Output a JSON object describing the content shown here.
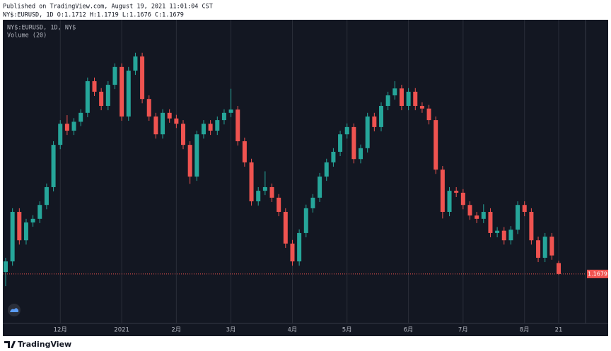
{
  "chart_data": {
    "type": "candlestick",
    "title": "Published on TradingView.com, August 19, 2021 11:01:04 CST",
    "subtitle": "NY$:EURUSD, 1D O:1.1712 H:1.1719 L:1.1676 C:1.1679",
    "annotations": [
      "NY$:EURUSD, 1D, NY$",
      "Volume (20)"
    ],
    "categories": [
      null,
      null,
      null,
      null,
      null,
      null,
      null,
      null,
      "12月",
      null,
      null,
      null,
      null,
      null,
      null,
      null,
      null,
      "2021",
      null,
      null,
      null,
      null,
      null,
      null,
      null,
      "2月",
      null,
      null,
      null,
      null,
      null,
      null,
      null,
      "3月",
      null,
      null,
      null,
      null,
      null,
      null,
      null,
      null,
      "4月",
      null,
      null,
      null,
      null,
      null,
      null,
      null,
      "5月",
      null,
      null,
      null,
      null,
      null,
      null,
      null,
      null,
      "6月",
      null,
      null,
      null,
      null,
      null,
      null,
      null,
      "7月",
      null,
      null,
      null,
      null,
      null,
      null,
      null,
      null,
      "8月",
      null,
      null,
      null,
      null,
      "21"
    ],
    "open": [
      1.1685,
      1.1717,
      1.1867,
      1.1781,
      1.1835,
      1.1846,
      1.1888,
      1.1942,
      1.207,
      1.2134,
      1.2113,
      1.214,
      1.2167,
      1.2263,
      1.2231,
      1.2188,
      1.2252,
      1.2306,
      1.2156,
      1.2295,
      1.2338,
      1.2209,
      1.2156,
      1.2102,
      1.2167,
      1.215,
      1.2134,
      1.207,
      1.1974,
      1.2102,
      1.2134,
      1.2113,
      1.2145,
      1.2167,
      1.2177,
      1.2081,
      1.2017,
      1.1899,
      1.1931,
      1.1942,
      1.191,
      1.1867,
      1.1771,
      1.1717,
      1.1803,
      1.1878,
      1.191,
      1.1974,
      1.2017,
      1.2049,
      1.2102,
      1.2124,
      1.2027,
      1.206,
      1.2156,
      1.2124,
      1.2188,
      1.222,
      1.2241,
      1.2188,
      1.2231,
      1.2188,
      1.218,
      1.2145,
      1.1995,
      1.1867,
      1.1931,
      1.1925,
      1.1888,
      1.1856,
      1.1846,
      1.1867,
      1.1803,
      1.181,
      1.1781,
      1.1813,
      1.1888,
      1.1867,
      1.1781,
      1.1728,
      1.1792,
      1.1712
    ],
    "high": [
      1.1728,
      1.1878,
      1.1878,
      1.1846,
      1.1857,
      1.1899,
      1.1953,
      1.2081,
      1.2145,
      1.216,
      1.2151,
      1.2178,
      1.2274,
      1.2274,
      1.2242,
      1.2263,
      1.2317,
      1.2317,
      1.2306,
      1.2349,
      1.2349,
      1.222,
      1.2167,
      1.2178,
      1.2178,
      1.2161,
      1.2145,
      1.2081,
      1.2113,
      1.2145,
      1.2145,
      1.2156,
      1.2178,
      1.224,
      1.2188,
      1.2092,
      1.2028,
      1.1942,
      1.199,
      1.1953,
      1.1921,
      1.1878,
      1.1782,
      1.1814,
      1.1889,
      1.1921,
      1.1985,
      1.2028,
      1.206,
      1.2113,
      1.2135,
      1.2135,
      1.2071,
      1.2167,
      1.2167,
      1.2199,
      1.2231,
      1.2263,
      1.2252,
      1.2242,
      1.2242,
      1.2199,
      1.2191,
      1.2156,
      1.2006,
      1.1942,
      1.1942,
      1.1936,
      1.1899,
      1.1867,
      1.189,
      1.1878,
      1.1821,
      1.1821,
      1.1824,
      1.1899,
      1.1899,
      1.1878,
      1.1792,
      1.1803,
      1.1803,
      1.1719
    ],
    "low": [
      1.1642,
      1.1704,
      1.1768,
      1.1768,
      1.1822,
      1.1833,
      1.1875,
      1.1929,
      1.2057,
      1.21,
      1.21,
      1.2127,
      1.2154,
      1.2218,
      1.2175,
      1.2175,
      1.2239,
      1.2143,
      1.2143,
      1.2282,
      1.2196,
      1.2143,
      1.2089,
      1.2089,
      1.2137,
      1.2121,
      1.2057,
      1.1952,
      1.1961,
      1.2089,
      1.21,
      1.21,
      1.2132,
      1.2154,
      1.2068,
      1.2004,
      1.1886,
      1.1886,
      1.1918,
      1.1897,
      1.1854,
      1.1758,
      1.1704,
      1.1704,
      1.179,
      1.1865,
      1.1897,
      1.1961,
      1.2004,
      1.2036,
      1.2089,
      1.2014,
      1.2014,
      1.2047,
      1.2111,
      1.2111,
      1.2175,
      1.2207,
      1.2175,
      1.2175,
      1.2175,
      1.2167,
      1.2132,
      1.1982,
      1.1847,
      1.1854,
      1.1912,
      1.1875,
      1.1843,
      1.1833,
      1.1833,
      1.179,
      1.179,
      1.1768,
      1.1768,
      1.18,
      1.1854,
      1.1768,
      1.1715,
      1.1715,
      1.1722,
      1.1676
    ],
    "close": [
      1.1717,
      1.1867,
      1.1781,
      1.1835,
      1.1846,
      1.1888,
      1.1942,
      1.207,
      1.2134,
      1.2113,
      1.214,
      1.2167,
      1.2263,
      1.2231,
      1.2188,
      1.2252,
      1.2306,
      1.2156,
      1.2295,
      1.2338,
      1.2209,
      1.2156,
      1.2102,
      1.2167,
      1.215,
      1.2134,
      1.207,
      1.1974,
      1.2102,
      1.2134,
      1.2113,
      1.2145,
      1.2167,
      1.2177,
      1.2081,
      1.2017,
      1.1899,
      1.1931,
      1.1942,
      1.191,
      1.1867,
      1.1771,
      1.1717,
      1.1803,
      1.1878,
      1.191,
      1.1974,
      1.2017,
      1.2049,
      1.2102,
      1.2124,
      1.2027,
      1.206,
      1.2156,
      1.2124,
      1.2188,
      1.222,
      1.2241,
      1.2188,
      1.2231,
      1.2188,
      1.218,
      1.2145,
      1.1995,
      1.1867,
      1.1931,
      1.1925,
      1.1888,
      1.1856,
      1.1846,
      1.1867,
      1.1803,
      1.181,
      1.1781,
      1.1813,
      1.1888,
      1.1867,
      1.1781,
      1.1728,
      1.1792,
      1.1735,
      1.1679
    ],
    "up_color": "#26a69a",
    "down_color": "#ef5350",
    "ylim": [
      1.1529,
      1.2449
    ]
  },
  "footer": "TradingView"
}
